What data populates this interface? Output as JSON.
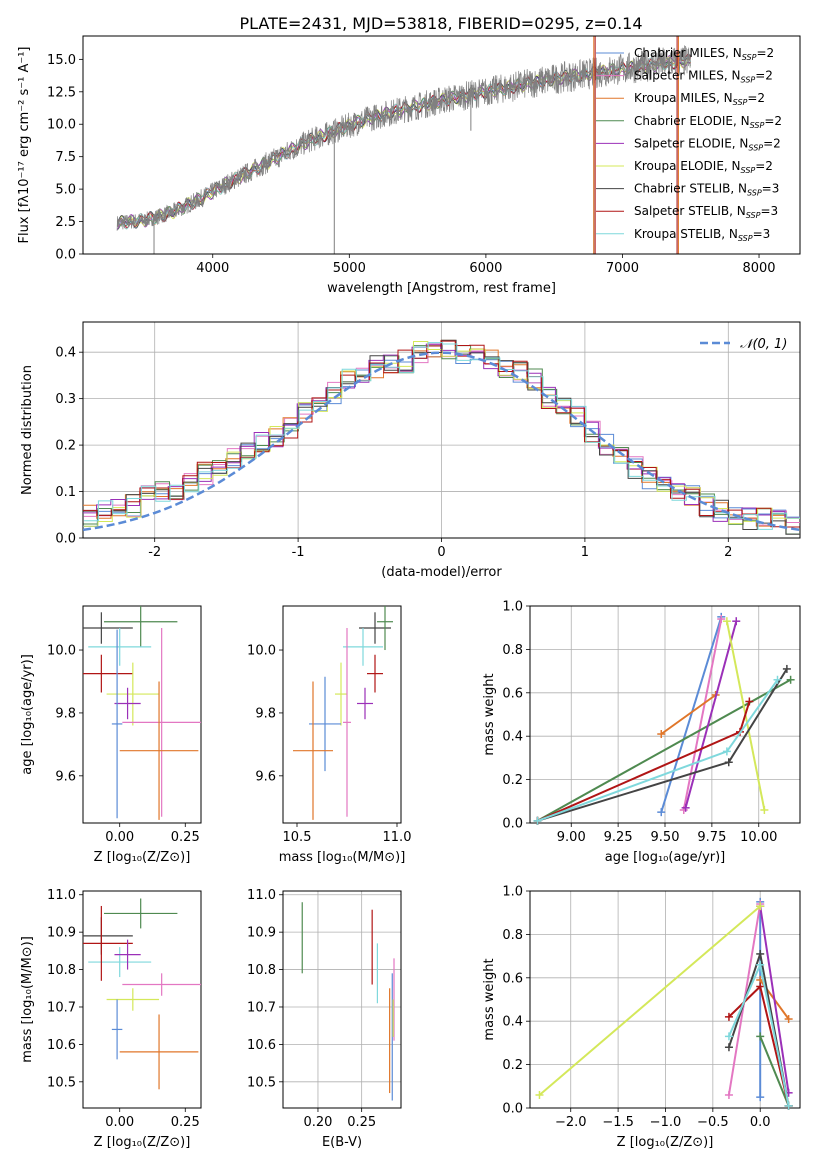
{
  "figure": {
    "title": "PLATE=2431, MJD=53818, FIBERID=0295, z=0.14"
  },
  "chart_data": [
    {
      "id": "spectrum",
      "type": "line",
      "xlabel": "wavelength [Angstrom, rest frame]",
      "ylabel": "Flux [fλ10⁻¹⁷ erg cm⁻² s⁻¹ A⁻¹]",
      "xlim": [
        3050,
        8300
      ],
      "ylim": [
        0,
        16.8
      ],
      "xticks": [
        4000,
        5000,
        6000,
        7000,
        8000
      ],
      "yticks": [
        0.0,
        2.5,
        5.0,
        7.5,
        10.0,
        12.5,
        15.0
      ],
      "grid": false,
      "legend_position": "top-right",
      "data_trend": {
        "x": [
          3300,
          3500,
          3700,
          3900,
          4100,
          4300,
          4500,
          4700,
          4900,
          5100,
          5300,
          5500,
          5700,
          5900,
          6100,
          6300,
          6500,
          6700,
          6900,
          7100,
          7300,
          7500
        ],
        "y": [
          2.4,
          2.6,
          3.2,
          4.2,
          5.4,
          6.5,
          7.6,
          8.7,
          9.5,
          10.3,
          10.9,
          11.4,
          11.9,
          12.3,
          12.7,
          13.1,
          13.5,
          13.8,
          14.1,
          14.4,
          14.7,
          14.9
        ]
      },
      "spectral_spikes": [
        {
          "x": 4890,
          "y": 0.0
        },
        {
          "x": 5890,
          "y": 9.5
        },
        {
          "x": 6790,
          "y": 0.0
        },
        {
          "x": 7400,
          "y": 0.0
        },
        {
          "x": 3570,
          "y": 0.0
        }
      ],
      "series": [
        {
          "name": "Chabrier MILES, N_SSP=2",
          "color": "#5b8bd6"
        },
        {
          "name": "Salpeter MILES, N_SSP=2",
          "color": "#e377c2"
        },
        {
          "name": "Kroupa MILES, N_SSP=2",
          "color": "#e0762a"
        },
        {
          "name": "Chabrier ELODIE, N_SSP=2",
          "color": "#4f8a50"
        },
        {
          "name": "Salpeter ELODIE, N_SSP=2",
          "color": "#9b30b8"
        },
        {
          "name": "Kroupa ELODIE, N_SSP=2",
          "color": "#d4e85a"
        },
        {
          "name": "Chabrier STELIB, N_SSP=3",
          "color": "#444444"
        },
        {
          "name": "Salpeter STELIB, N_SSP=3",
          "color": "#b01515"
        },
        {
          "name": "Kroupa STELIB, N_SSP=3",
          "color": "#7fd8dc"
        }
      ],
      "data_color": "#808080"
    },
    {
      "id": "residuals",
      "type": "histogram",
      "xlabel": "(data-model)/error",
      "ylabel": "Normed distribution",
      "xlim": [
        -2.5,
        2.5
      ],
      "ylim": [
        0,
        0.465
      ],
      "xticks": [
        -2,
        -1,
        0,
        1,
        2
      ],
      "yticks": [
        0.0,
        0.1,
        0.2,
        0.3,
        0.4
      ],
      "grid": true,
      "legend_position": "top-right",
      "reference_label": "𝒩(0, 1)",
      "reference_color": "#5b8bd6",
      "bin_edges_start": -2.5,
      "bin_width": 0.1,
      "hist_mean": [
        0.05,
        0.06,
        0.065,
        0.07,
        0.09,
        0.1,
        0.09,
        0.12,
        0.14,
        0.15,
        0.17,
        0.19,
        0.21,
        0.22,
        0.24,
        0.27,
        0.28,
        0.31,
        0.34,
        0.35,
        0.37,
        0.38,
        0.38,
        0.4,
        0.4,
        0.41,
        0.4,
        0.4,
        0.38,
        0.37,
        0.36,
        0.34,
        0.3,
        0.28,
        0.26,
        0.23,
        0.2,
        0.17,
        0.15,
        0.13,
        0.12,
        0.1,
        0.09,
        0.07,
        0.06,
        0.05,
        0.04,
        0.04,
        0.035,
        0.03
      ],
      "hist_offsets": [
        0.0,
        0.02,
        -0.015,
        0.01,
        -0.02,
        0.015,
        0.005,
        -0.01,
        0.025
      ]
    },
    {
      "id": "age-vs-Z",
      "type": "errorbar",
      "xlabel": "Z [log₁₀(Z/Z⊙)]",
      "ylabel": "age  [log₁₀(age/yr)]",
      "xlim": [
        -0.14,
        0.31
      ],
      "ylim": [
        9.45,
        10.14
      ],
      "xticks": [
        0.0,
        0.25
      ],
      "xticklabels": [
        "0.00",
        "0.25"
      ],
      "yticks": [
        9.6,
        9.8,
        10.0
      ],
      "grid": false,
      "points": [
        {
          "x": -0.07,
          "y": 10.07,
          "xerr": 0.12,
          "yerr": 0.05,
          "series": 6
        },
        {
          "x": 0.08,
          "y": 10.09,
          "xerr": 0.14,
          "yerr": 0.08,
          "series": 3
        },
        {
          "x": 0.0,
          "y": 10.01,
          "xerr": 0.12,
          "yerr": 0.06,
          "series": 8
        },
        {
          "x": -0.07,
          "y": 9.925,
          "xerr": 0.12,
          "yerr": 0.06,
          "series": 7
        },
        {
          "x": 0.05,
          "y": 9.86,
          "xerr": 0.1,
          "yerr": 0.1,
          "series": 5
        },
        {
          "x": 0.03,
          "y": 9.83,
          "xerr": 0.05,
          "yerr": 0.05,
          "series": 4
        },
        {
          "x": 0.16,
          "y": 9.77,
          "xerr": 0.15,
          "yerr": 0.3,
          "series": 1
        },
        {
          "x": -0.01,
          "y": 9.765,
          "xerr": 0.02,
          "yerr": 0.3,
          "series": 0
        },
        {
          "x": 0.15,
          "y": 9.68,
          "xerr": 0.15,
          "yerr": 0.22,
          "series": 2
        }
      ]
    },
    {
      "id": "age-vs-mass",
      "type": "errorbar",
      "xlabel": "mass [log₁₀(M/M⊙)]",
      "ylabel": "",
      "xlim": [
        10.43,
        11.02
      ],
      "ylim": [
        9.45,
        10.14
      ],
      "xticks": [
        10.5,
        11.0
      ],
      "xticklabels": [
        "10.5",
        "11.0"
      ],
      "yticks": [
        9.6,
        9.8,
        10.0
      ],
      "grid": false,
      "points": [
        {
          "x": 10.89,
          "y": 10.07,
          "xerr": 0.08,
          "yerr": 0.05,
          "series": 6
        },
        {
          "x": 10.94,
          "y": 10.09,
          "xerr": 0.04,
          "yerr": 0.09,
          "series": 3
        },
        {
          "x": 10.83,
          "y": 10.01,
          "xerr": 0.1,
          "yerr": 0.06,
          "series": 8
        },
        {
          "x": 10.89,
          "y": 9.925,
          "xerr": 0.04,
          "yerr": 0.06,
          "series": 7
        },
        {
          "x": 10.72,
          "y": 9.86,
          "xerr": 0.03,
          "yerr": 0.1,
          "series": 5
        },
        {
          "x": 10.84,
          "y": 9.83,
          "xerr": 0.04,
          "yerr": 0.05,
          "series": 4
        },
        {
          "x": 10.75,
          "y": 9.77,
          "xerr": 0.02,
          "yerr": 0.3,
          "series": 1
        },
        {
          "x": 10.64,
          "y": 9.765,
          "xerr": 0.08,
          "yerr": 0.15,
          "series": 0
        },
        {
          "x": 10.58,
          "y": 9.68,
          "xerr": 0.1,
          "yerr": 0.22,
          "series": 2
        }
      ]
    },
    {
      "id": "weight-vs-age",
      "type": "line",
      "xlabel": "age  [log₁₀(age/yr)]",
      "ylabel": "mass weight",
      "xlim": [
        8.78,
        10.22
      ],
      "ylim": [
        0.0,
        1.0
      ],
      "xticks": [
        9.0,
        9.25,
        9.5,
        9.75,
        10.0
      ],
      "xticklabels": [
        "9.00",
        "9.25",
        "9.50",
        "9.75",
        "10.00"
      ],
      "yticks": [
        0.0,
        0.2,
        0.4,
        0.6,
        0.8,
        1.0
      ],
      "grid": true,
      "lines": [
        {
          "series": 0,
          "x": [
            9.48,
            9.8
          ],
          "y": [
            0.05,
            0.95
          ]
        },
        {
          "series": 1,
          "x": [
            9.6,
            9.8
          ],
          "y": [
            0.06,
            0.94
          ]
        },
        {
          "series": 2,
          "x": [
            9.48,
            9.77
          ],
          "y": [
            0.41,
            0.59
          ]
        },
        {
          "series": 3,
          "x": [
            8.82,
            10.17
          ],
          "y": [
            0.01,
            0.66
          ]
        },
        {
          "series": 4,
          "x": [
            9.61,
            9.88
          ],
          "y": [
            0.07,
            0.93
          ]
        },
        {
          "series": 5,
          "x": [
            9.83,
            10.03
          ],
          "y": [
            0.93,
            0.06
          ]
        },
        {
          "series": 6,
          "x": [
            8.82,
            9.84,
            10.15
          ],
          "y": [
            0.01,
            0.28,
            0.71
          ]
        },
        {
          "series": 7,
          "x": [
            8.82,
            9.9,
            9.95
          ],
          "y": [
            0.01,
            0.42,
            0.56
          ]
        },
        {
          "series": 8,
          "x": [
            8.82,
            9.83,
            10.1
          ],
          "y": [
            0.01,
            0.33,
            0.66
          ]
        }
      ]
    },
    {
      "id": "mass-vs-Z",
      "type": "errorbar",
      "xlabel": "Z [log₁₀(Z/Z⊙)]",
      "ylabel": "mass [log₁₀(M/M⊙)]",
      "xlim": [
        -0.14,
        0.31
      ],
      "ylim": [
        10.43,
        11.01
      ],
      "xticks": [
        0.0,
        0.25
      ],
      "xticklabels": [
        "0.00",
        "0.25"
      ],
      "yticks": [
        10.5,
        10.6,
        10.7,
        10.8,
        10.9,
        11.0
      ],
      "grid": false,
      "points": [
        {
          "x": -0.07,
          "y": 10.89,
          "xerr": 0.12,
          "yerr": 0.05,
          "series": 6
        },
        {
          "x": 0.08,
          "y": 10.95,
          "xerr": 0.14,
          "yerr": 0.04,
          "series": 3
        },
        {
          "x": 0.0,
          "y": 10.82,
          "xerr": 0.12,
          "yerr": 0.04,
          "series": 8
        },
        {
          "x": -0.07,
          "y": 10.87,
          "xerr": 0.12,
          "yerr": 0.1,
          "series": 7
        },
        {
          "x": 0.05,
          "y": 10.72,
          "xerr": 0.1,
          "yerr": 0.03,
          "series": 5
        },
        {
          "x": 0.03,
          "y": 10.84,
          "xerr": 0.05,
          "yerr": 0.04,
          "series": 4
        },
        {
          "x": 0.16,
          "y": 10.76,
          "xerr": 0.15,
          "yerr": 0.03,
          "series": 1
        },
        {
          "x": -0.01,
          "y": 10.64,
          "xerr": 0.02,
          "yerr": 0.08,
          "series": 0
        },
        {
          "x": 0.15,
          "y": 10.58,
          "xerr": 0.15,
          "yerr": 0.1,
          "series": 2
        }
      ]
    },
    {
      "id": "mass-vs-ebv",
      "type": "errorbar",
      "xlabel": "E(B-V)",
      "ylabel": "",
      "xlim": [
        0.16,
        0.295
      ],
      "ylim": [
        10.43,
        11.01
      ],
      "xticks": [
        0.2,
        0.25
      ],
      "xticklabels": [
        "0.20",
        "0.25"
      ],
      "yticks": [
        10.5,
        10.6,
        10.7,
        10.8,
        10.9,
        11.0
      ],
      "grid": true,
      "points": [
        {
          "x": 0.182,
          "y": 10.885,
          "xerr": 0,
          "yerr": 0.095,
          "series": 3
        },
        {
          "x": 0.262,
          "y": 10.86,
          "xerr": 0,
          "yerr": 0.1,
          "series": 7
        },
        {
          "x": 0.268,
          "y": 10.79,
          "xerr": 0,
          "yerr": 0.08,
          "series": 8
        },
        {
          "x": 0.282,
          "y": 10.61,
          "xerr": 0,
          "yerr": 0.14,
          "series": 2
        },
        {
          "x": 0.285,
          "y": 10.62,
          "xerr": 0,
          "yerr": 0.17,
          "series": 0
        },
        {
          "x": 0.287,
          "y": 10.72,
          "xerr": 0,
          "yerr": 0.11,
          "series": 1
        },
        {
          "x": 0.286,
          "y": 10.67,
          "xerr": 0,
          "yerr": 0.05,
          "series": 5
        }
      ]
    },
    {
      "id": "weight-vs-Z",
      "type": "line",
      "xlabel": "Z [log₁₀(Z/Z⊙)]",
      "ylabel": "mass weight",
      "xlim": [
        -2.43,
        0.42
      ],
      "ylim": [
        0.0,
        1.0
      ],
      "xticks": [
        -2.0,
        -1.5,
        -1.0,
        -0.5,
        0.0
      ],
      "xticklabels": [
        "−2.0",
        "−1.5",
        "−1.0",
        "−0.5",
        "0.0"
      ],
      "yticks": [
        0.0,
        0.2,
        0.4,
        0.6,
        0.8,
        1.0
      ],
      "grid": true,
      "lines": [
        {
          "series": 0,
          "x": [
            0.0,
            0.0
          ],
          "y": [
            0.05,
            0.95
          ]
        },
        {
          "series": 1,
          "x": [
            -0.33,
            0.0
          ],
          "y": [
            0.06,
            0.94
          ]
        },
        {
          "series": 2,
          "x": [
            0.0,
            0.3
          ],
          "y": [
            0.59,
            0.41
          ]
        },
        {
          "series": 3,
          "x": [
            0.0,
            0.3
          ],
          "y": [
            0.33,
            0.01
          ]
        },
        {
          "series": 4,
          "x": [
            0.0,
            0.3
          ],
          "y": [
            0.93,
            0.07
          ]
        },
        {
          "series": 5,
          "x": [
            -2.33,
            0.0
          ],
          "y": [
            0.06,
            0.93
          ]
        },
        {
          "series": 6,
          "x": [
            -0.33,
            0.0,
            0.3
          ],
          "y": [
            0.28,
            0.71,
            0.01
          ]
        },
        {
          "series": 7,
          "x": [
            -0.33,
            0.0,
            0.3
          ],
          "y": [
            0.42,
            0.56,
            0.01
          ]
        },
        {
          "series": 8,
          "x": [
            -0.33,
            0.0,
            0.3
          ],
          "y": [
            0.33,
            0.66,
            0.01
          ]
        }
      ]
    }
  ]
}
